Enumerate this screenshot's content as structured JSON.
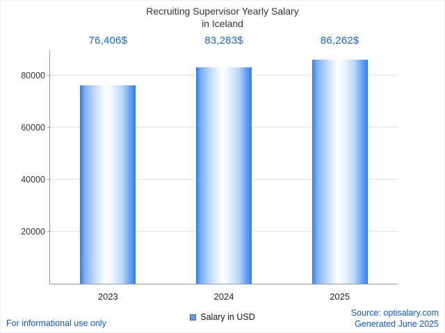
{
  "title": {
    "line1": "Recruiting Supervisor Yearly Salary",
    "line2": "in Iceland"
  },
  "chart_data": {
    "type": "bar",
    "title": "Recruiting Supervisor Yearly Salary in Iceland",
    "categories": [
      "2023",
      "2024",
      "2025"
    ],
    "values": [
      76406,
      83283,
      86262
    ],
    "value_labels": [
      "76,406$",
      "83,283$",
      "86,262$"
    ],
    "series_name": "Salary in USD",
    "xlabel": "",
    "ylabel": "",
    "ylim": [
      0,
      90000
    ],
    "yticks": [
      20000,
      40000,
      60000,
      80000
    ],
    "grid": true,
    "legend_position": "bottom-center"
  },
  "legend": {
    "label": "Salary in USD"
  },
  "footer": {
    "left": "For informational use only",
    "source": "Source: optisalary.com",
    "generated": "Generated June 2025"
  },
  "colors": {
    "accent": "#1763d2",
    "footer_link": "#1155cc",
    "bar_edge": "#2f7de8",
    "grid": "#e4e4e4",
    "axis": "#999999",
    "title": "#333333"
  }
}
